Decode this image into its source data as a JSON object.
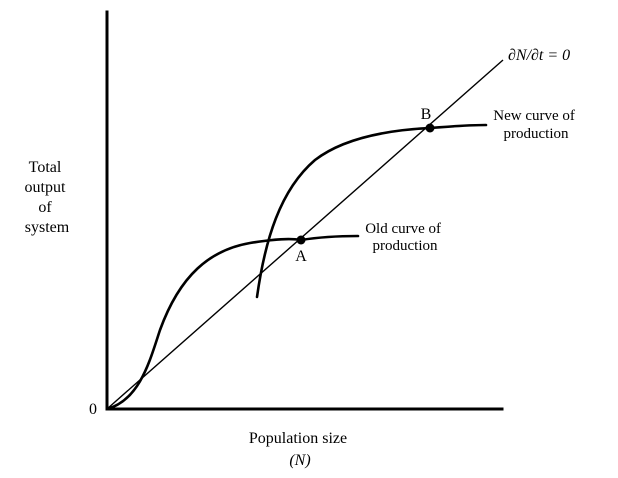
{
  "y_axis_label": [
    "Total",
    "output",
    "of",
    "system"
  ],
  "x_axis_label": [
    "Population size",
    "(N)"
  ],
  "origin_label": "0",
  "equilibrium_line_label": "∂N/∂t = 0",
  "points": [
    {
      "id": "A",
      "label": "A"
    },
    {
      "id": "B",
      "label": "B"
    }
  ],
  "old_curve_label": [
    "Old curve of",
    "production"
  ],
  "new_curve_label": [
    "New curve of",
    "production"
  ]
}
